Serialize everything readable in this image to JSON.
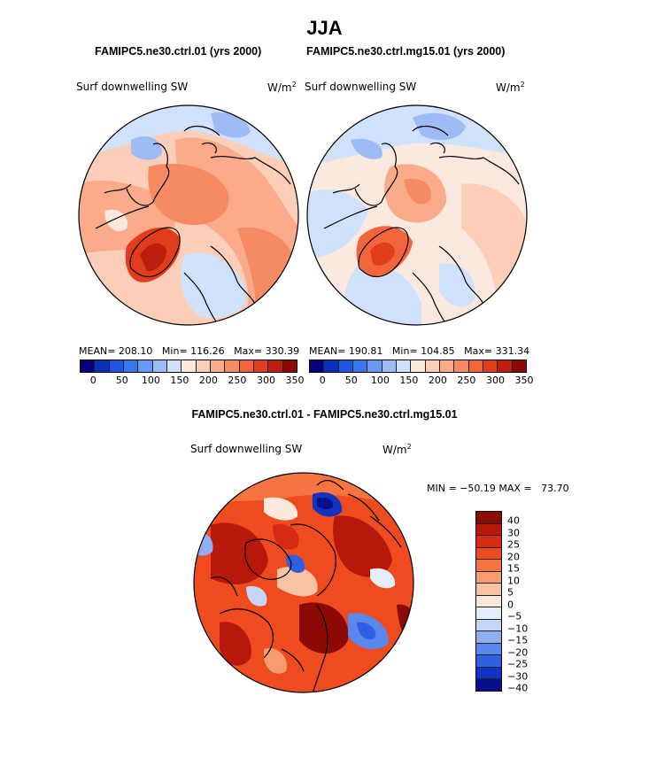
{
  "figure": {
    "title": "JJA",
    "panel_titles": {
      "left": "FAMIPC5.ne30.ctrl.01 (yrs 2000)",
      "right": "FAMIPC5.ne30.ctrl.mg15.01 (yrs 2000)",
      "diff": "FAMIPC5.ne30.ctrl.01 - FAMIPC5.ne30.ctrl.mg15.01"
    },
    "variable": "Surf downwelling SW",
    "units_base": "W/m",
    "units_exp": "2"
  },
  "chart_data": [
    {
      "type": "heatmap",
      "projection": "north-polar-stereographic",
      "case": "FAMIPC5.ne30.ctrl.01 (yrs 2000)",
      "variable": "Surf downwelling SW",
      "units": "W/m2",
      "stats": {
        "mean_label": "MEAN=",
        "mean": "208.10",
        "min_label": "Min=",
        "min": "116.26",
        "max_label": "Max=",
        "max": "330.39"
      },
      "levels": [
        0,
        25,
        50,
        75,
        100,
        125,
        150,
        175,
        200,
        225,
        250,
        275,
        300,
        325,
        350
      ],
      "tick_labels": [
        "0",
        "50",
        "100",
        "150",
        "200",
        "250",
        "300",
        "350"
      ]
    },
    {
      "type": "heatmap",
      "projection": "north-polar-stereographic",
      "case": "FAMIPC5.ne30.ctrl.mg15.01 (yrs 2000)",
      "variable": "Surf downwelling SW",
      "units": "W/m2",
      "stats": {
        "mean_label": "MEAN=",
        "mean": "190.81",
        "min_label": "Min=",
        "min": "104.85",
        "max_label": "Max=",
        "max": "331.34"
      },
      "levels": [
        0,
        25,
        50,
        75,
        100,
        125,
        150,
        175,
        200,
        225,
        250,
        275,
        300,
        325,
        350
      ],
      "tick_labels": [
        "0",
        "50",
        "100",
        "150",
        "200",
        "250",
        "300",
        "350"
      ]
    },
    {
      "type": "heatmap",
      "projection": "north-polar-stereographic",
      "case": "FAMIPC5.ne30.ctrl.01 - FAMIPC5.ne30.ctrl.mg15.01",
      "variable": "Surf downwelling SW",
      "units": "W/m2",
      "stats": {
        "min_label": "MIN =",
        "min": "−50.19",
        "max_label": "MAX =",
        "max": "73.70"
      },
      "levels": [
        40,
        30,
        25,
        20,
        15,
        10,
        5,
        0,
        -5,
        -10,
        -15,
        -20,
        -25,
        -30,
        -40
      ],
      "tick_labels": [
        "40",
        "30",
        "25",
        "20",
        "15",
        "10",
        "5",
        "0",
        "−5",
        "−10",
        "−15",
        "−20",
        "−25",
        "−30",
        "−40"
      ]
    }
  ],
  "colors": {
    "sequential": [
      "#08007a",
      "#0a2fb8",
      "#1f55e0",
      "#3a76ee",
      "#6a98f2",
      "#9dbcf5",
      "#cfe1fb",
      "#fbe8df",
      "#fccdb7",
      "#f9ab8a",
      "#f68a63",
      "#f1653c",
      "#e03d1d",
      "#bd1f0e",
      "#8c0a06"
    ],
    "diverging": [
      "#8c0a06",
      "#b8170b",
      "#d62a12",
      "#ee4b1f",
      "#f6743f",
      "#f99b70",
      "#fbc3a5",
      "#fce8dc",
      "#e6eefb",
      "#c3d6f8",
      "#8faff2",
      "#5a87ec",
      "#2f5fe3",
      "#1233c1",
      "#07108a"
    ]
  }
}
